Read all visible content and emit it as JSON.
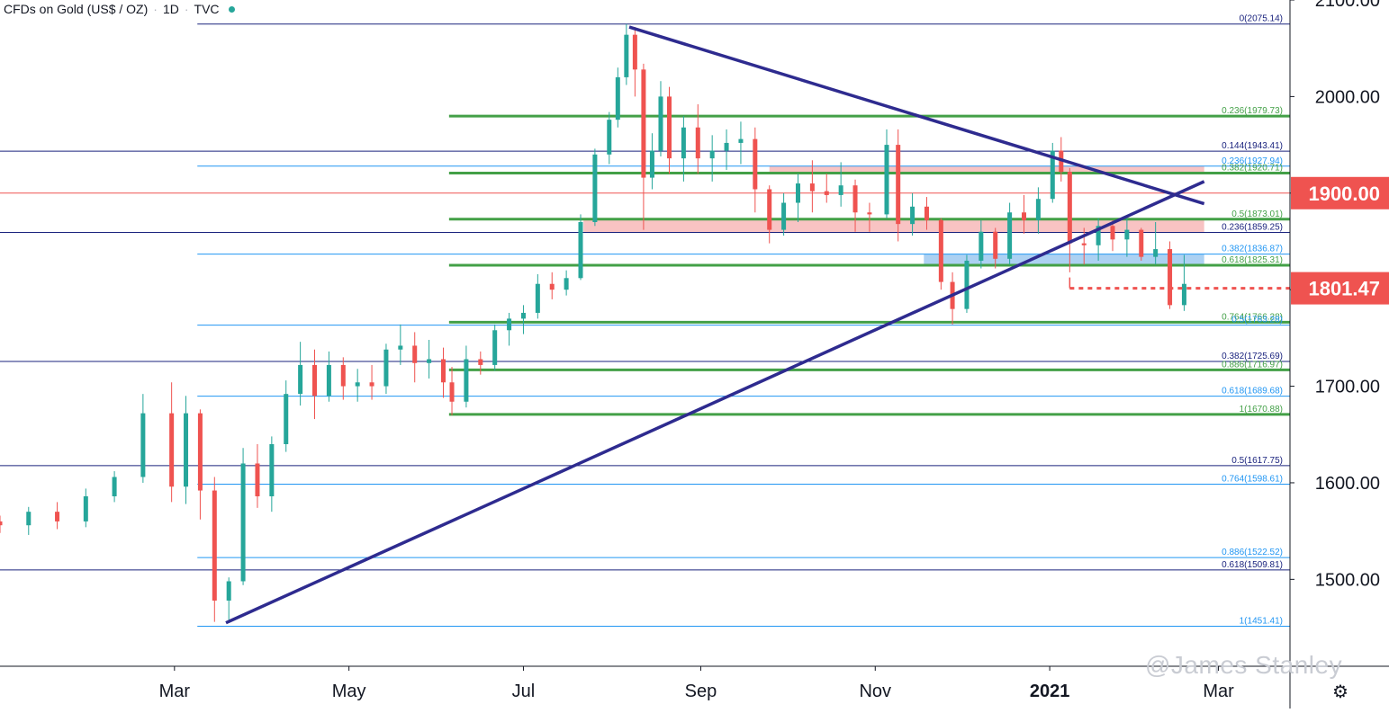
{
  "header": {
    "symbol": "CFDs on Gold (US$ / OZ)",
    "interval": "1D",
    "source": "TVC"
  },
  "colors": {
    "up": "#26a69a",
    "down": "#ef5350",
    "trendline": "#2e2b8f",
    "fib_green": "#43a047",
    "fib_blue": "#2196f3",
    "fib_navy": "#1a237e",
    "price_badge": "#ef5350",
    "zone_red": "#f7b8b8",
    "zone_blue": "#9ec9f0"
  },
  "watermark": "@James Stanley",
  "chart_data": {
    "type": "candlestick",
    "title": "",
    "xlabel": "",
    "ylabel": "",
    "ylim": [
      1410,
      2100
    ],
    "x_ticks": [
      {
        "label": "Mar",
        "date": "2020-03-01"
      },
      {
        "label": "May",
        "date": "2020-05-01"
      },
      {
        "label": "Jul",
        "date": "2020-07-01"
      },
      {
        "label": "Sep",
        "date": "2020-09-01"
      },
      {
        "label": "Nov",
        "date": "2020-11-01"
      },
      {
        "label": "2021",
        "date": "2021-01-01"
      },
      {
        "label": "Mar",
        "date": "2021-03-01"
      }
    ],
    "y_ticks": [
      "2100.00",
      "2000.00",
      "1900.00",
      "1800.00",
      "1700.00",
      "1600.00",
      "1500.00"
    ],
    "price_labels": [
      {
        "value": 1900.0,
        "label": "1900.00"
      },
      {
        "value": 1801.47,
        "label": "1801.47"
      }
    ],
    "reference_line": {
      "value": 1900.0
    },
    "fib_levels": [
      {
        "label": "0(2075.14)",
        "value": 2075.14,
        "color": "fib_navy",
        "start": "2020-03-09"
      },
      {
        "label": "0.236(1979.73)",
        "value": 1979.73,
        "color": "fib_green",
        "start": "2020-06-05"
      },
      {
        "label": "0.144(1943.41)",
        "value": 1943.41,
        "color": "fib_navy",
        "start": "2019-12-31"
      },
      {
        "label": "0.236(1927.94)",
        "value": 1927.94,
        "color": "fib_blue",
        "start": "2020-03-09"
      },
      {
        "label": "0.382(1920.71)",
        "value": 1920.71,
        "color": "fib_green",
        "start": "2020-06-05"
      },
      {
        "label": "0.5(1873.01)",
        "value": 1873.01,
        "color": "fib_green",
        "start": "2020-06-05"
      },
      {
        "label": "0.236(1859.25)",
        "value": 1859.25,
        "color": "fib_navy",
        "start": "2019-12-31"
      },
      {
        "label": "0.382(1836.87)",
        "value": 1836.87,
        "color": "fib_blue",
        "start": "2020-03-09"
      },
      {
        "label": "0.618(1825.31)",
        "value": 1825.31,
        "color": "fib_green",
        "start": "2020-06-05"
      },
      {
        "label": "0.764(1766.28)",
        "value": 1766.28,
        "color": "fib_green",
        "start": "2020-06-05"
      },
      {
        "label": "0.5(1763.28)",
        "value": 1763.28,
        "color": "fib_blue",
        "start": "2020-03-09"
      },
      {
        "label": "0.382(1725.69)",
        "value": 1725.69,
        "color": "fib_navy",
        "start": "2019-12-31"
      },
      {
        "label": "0.886(1716.97)",
        "value": 1716.97,
        "color": "fib_green",
        "start": "2020-06-05"
      },
      {
        "label": "0.618(1689.68)",
        "value": 1689.68,
        "color": "fib_blue",
        "start": "2020-03-09"
      },
      {
        "label": "1(1670.88)",
        "value": 1670.88,
        "color": "fib_green",
        "start": "2020-06-05"
      },
      {
        "label": "0.5(1617.75)",
        "value": 1617.75,
        "color": "fib_navy",
        "start": "2019-12-31"
      },
      {
        "label": "0.764(1598.61)",
        "value": 1598.61,
        "color": "fib_blue",
        "start": "2020-03-09"
      },
      {
        "label": "0.886(1522.52)",
        "value": 1522.52,
        "color": "fib_blue",
        "start": "2020-03-09"
      },
      {
        "label": "0.618(1509.81)",
        "value": 1509.81,
        "color": "fib_navy",
        "start": "2019-12-31"
      },
      {
        "label": "1(1451.41)",
        "value": 1451.41,
        "color": "fib_blue",
        "start": "2020-03-09"
      }
    ],
    "zones": [
      {
        "name": "resistance",
        "from_date": "2020-09-25",
        "to_date": "2021-02-24",
        "low": 1920.71,
        "high": 1927.94,
        "color": "zone_red"
      },
      {
        "name": "resistance",
        "from_date": "2020-07-22",
        "to_date": "2021-02-24",
        "low": 1859.25,
        "high": 1873.01,
        "color": "zone_red"
      },
      {
        "name": "support",
        "from_date": "2020-11-18",
        "to_date": "2021-02-24",
        "low": 1825.31,
        "high": 1836.87,
        "color": "zone_blue"
      }
    ],
    "trendlines": [
      {
        "from": {
          "date": "2020-03-19",
          "value": 1455
        },
        "to": {
          "date": "2021-02-24",
          "value": 1912
        }
      },
      {
        "from": {
          "date": "2020-08-07",
          "value": 2072
        },
        "to": {
          "date": "2021-02-24",
          "value": 1889
        }
      }
    ],
    "dashed_level": {
      "from_date": "2021-01-08",
      "to_date": "2021-02-24",
      "value": 1801.47
    },
    "candles": [
      {
        "d": "2019-12-31",
        "o": 1560,
        "h": 1566,
        "l": 1548,
        "c": 1556
      },
      {
        "d": "2020-01-10",
        "o": 1556,
        "h": 1575,
        "l": 1546,
        "c": 1570
      },
      {
        "d": "2020-01-20",
        "o": 1570,
        "h": 1580,
        "l": 1552,
        "c": 1560
      },
      {
        "d": "2020-01-30",
        "o": 1560,
        "h": 1594,
        "l": 1554,
        "c": 1586
      },
      {
        "d": "2020-02-09",
        "o": 1586,
        "h": 1612,
        "l": 1580,
        "c": 1606
      },
      {
        "d": "2020-02-19",
        "o": 1606,
        "h": 1692,
        "l": 1600,
        "c": 1672
      },
      {
        "d": "2020-02-29",
        "o": 1672,
        "h": 1704,
        "l": 1580,
        "c": 1596
      },
      {
        "d": "2020-03-05",
        "o": 1596,
        "h": 1690,
        "l": 1578,
        "c": 1672
      },
      {
        "d": "2020-03-10",
        "o": 1672,
        "h": 1676,
        "l": 1562,
        "c": 1592
      },
      {
        "d": "2020-03-15",
        "o": 1592,
        "h": 1606,
        "l": 1456,
        "c": 1478
      },
      {
        "d": "2020-03-20",
        "o": 1478,
        "h": 1502,
        "l": 1458,
        "c": 1498
      },
      {
        "d": "2020-03-25",
        "o": 1498,
        "h": 1636,
        "l": 1494,
        "c": 1620
      },
      {
        "d": "2020-03-30",
        "o": 1620,
        "h": 1640,
        "l": 1574,
        "c": 1586
      },
      {
        "d": "2020-04-04",
        "o": 1586,
        "h": 1648,
        "l": 1570,
        "c": 1640
      },
      {
        "d": "2020-04-09",
        "o": 1640,
        "h": 1706,
        "l": 1632,
        "c": 1692
      },
      {
        "d": "2020-04-14",
        "o": 1692,
        "h": 1746,
        "l": 1680,
        "c": 1722
      },
      {
        "d": "2020-04-19",
        "o": 1722,
        "h": 1738,
        "l": 1666,
        "c": 1690
      },
      {
        "d": "2020-04-24",
        "o": 1690,
        "h": 1736,
        "l": 1684,
        "c": 1722
      },
      {
        "d": "2020-04-29",
        "o": 1722,
        "h": 1730,
        "l": 1686,
        "c": 1700
      },
      {
        "d": "2020-05-04",
        "o": 1700,
        "h": 1718,
        "l": 1684,
        "c": 1704
      },
      {
        "d": "2020-05-09",
        "o": 1704,
        "h": 1722,
        "l": 1686,
        "c": 1700
      },
      {
        "d": "2020-05-14",
        "o": 1700,
        "h": 1744,
        "l": 1692,
        "c": 1738
      },
      {
        "d": "2020-05-19",
        "o": 1738,
        "h": 1764,
        "l": 1722,
        "c": 1742
      },
      {
        "d": "2020-05-24",
        "o": 1742,
        "h": 1756,
        "l": 1704,
        "c": 1724
      },
      {
        "d": "2020-05-29",
        "o": 1724,
        "h": 1748,
        "l": 1708,
        "c": 1728
      },
      {
        "d": "2020-06-03",
        "o": 1728,
        "h": 1740,
        "l": 1688,
        "c": 1704
      },
      {
        "d": "2020-06-06",
        "o": 1704,
        "h": 1720,
        "l": 1670,
        "c": 1684
      },
      {
        "d": "2020-06-11",
        "o": 1684,
        "h": 1742,
        "l": 1678,
        "c": 1728
      },
      {
        "d": "2020-06-16",
        "o": 1728,
        "h": 1736,
        "l": 1712,
        "c": 1722
      },
      {
        "d": "2020-06-21",
        "o": 1722,
        "h": 1764,
        "l": 1716,
        "c": 1758
      },
      {
        "d": "2020-06-26",
        "o": 1758,
        "h": 1776,
        "l": 1742,
        "c": 1770
      },
      {
        "d": "2020-07-01",
        "o": 1770,
        "h": 1784,
        "l": 1754,
        "c": 1776
      },
      {
        "d": "2020-07-06",
        "o": 1776,
        "h": 1816,
        "l": 1770,
        "c": 1806
      },
      {
        "d": "2020-07-11",
        "o": 1806,
        "h": 1818,
        "l": 1790,
        "c": 1800
      },
      {
        "d": "2020-07-16",
        "o": 1800,
        "h": 1820,
        "l": 1794,
        "c": 1812
      },
      {
        "d": "2020-07-21",
        "o": 1812,
        "h": 1878,
        "l": 1810,
        "c": 1870
      },
      {
        "d": "2020-07-26",
        "o": 1870,
        "h": 1946,
        "l": 1866,
        "c": 1940
      },
      {
        "d": "2020-07-31",
        "o": 1940,
        "h": 1984,
        "l": 1930,
        "c": 1976
      },
      {
        "d": "2020-08-03",
        "o": 1976,
        "h": 2030,
        "l": 1968,
        "c": 2020
      },
      {
        "d": "2020-08-06",
        "o": 2020,
        "h": 2075,
        "l": 2012,
        "c": 2064
      },
      {
        "d": "2020-08-09",
        "o": 2064,
        "h": 2072,
        "l": 2000,
        "c": 2028
      },
      {
        "d": "2020-08-12",
        "o": 2028,
        "h": 2034,
        "l": 1862,
        "c": 1916
      },
      {
        "d": "2020-08-15",
        "o": 1916,
        "h": 1962,
        "l": 1904,
        "c": 1944
      },
      {
        "d": "2020-08-18",
        "o": 1944,
        "h": 2016,
        "l": 1938,
        "c": 2000
      },
      {
        "d": "2020-08-21",
        "o": 2000,
        "h": 2010,
        "l": 1920,
        "c": 1936
      },
      {
        "d": "2020-08-26",
        "o": 1936,
        "h": 1980,
        "l": 1912,
        "c": 1968
      },
      {
        "d": "2020-08-31",
        "o": 1968,
        "h": 1992,
        "l": 1920,
        "c": 1936
      },
      {
        "d": "2020-09-05",
        "o": 1936,
        "h": 1960,
        "l": 1912,
        "c": 1944
      },
      {
        "d": "2020-09-10",
        "o": 1944,
        "h": 1966,
        "l": 1924,
        "c": 1952
      },
      {
        "d": "2020-09-15",
        "o": 1952,
        "h": 1974,
        "l": 1930,
        "c": 1956
      },
      {
        "d": "2020-09-20",
        "o": 1956,
        "h": 1968,
        "l": 1880,
        "c": 1904
      },
      {
        "d": "2020-09-25",
        "o": 1904,
        "h": 1908,
        "l": 1848,
        "c": 1862
      },
      {
        "d": "2020-09-30",
        "o": 1862,
        "h": 1900,
        "l": 1856,
        "c": 1890
      },
      {
        "d": "2020-10-05",
        "o": 1890,
        "h": 1920,
        "l": 1870,
        "c": 1910
      },
      {
        "d": "2020-10-10",
        "o": 1910,
        "h": 1934,
        "l": 1880,
        "c": 1902
      },
      {
        "d": "2020-10-15",
        "o": 1902,
        "h": 1920,
        "l": 1890,
        "c": 1898
      },
      {
        "d": "2020-10-20",
        "o": 1898,
        "h": 1932,
        "l": 1886,
        "c": 1908
      },
      {
        "d": "2020-10-25",
        "o": 1908,
        "h": 1914,
        "l": 1860,
        "c": 1880
      },
      {
        "d": "2020-10-30",
        "o": 1880,
        "h": 1890,
        "l": 1860,
        "c": 1878
      },
      {
        "d": "2020-11-05",
        "o": 1878,
        "h": 1966,
        "l": 1874,
        "c": 1950
      },
      {
        "d": "2020-11-09",
        "o": 1950,
        "h": 1966,
        "l": 1850,
        "c": 1868
      },
      {
        "d": "2020-11-14",
        "o": 1868,
        "h": 1900,
        "l": 1856,
        "c": 1886
      },
      {
        "d": "2020-11-19",
        "o": 1886,
        "h": 1896,
        "l": 1862,
        "c": 1872
      },
      {
        "d": "2020-11-24",
        "o": 1872,
        "h": 1874,
        "l": 1800,
        "c": 1808
      },
      {
        "d": "2020-11-28",
        "o": 1808,
        "h": 1818,
        "l": 1764,
        "c": 1780
      },
      {
        "d": "2020-12-03",
        "o": 1780,
        "h": 1836,
        "l": 1776,
        "c": 1830
      },
      {
        "d": "2020-12-08",
        "o": 1830,
        "h": 1872,
        "l": 1822,
        "c": 1860
      },
      {
        "d": "2020-12-13",
        "o": 1860,
        "h": 1864,
        "l": 1822,
        "c": 1832
      },
      {
        "d": "2020-12-18",
        "o": 1832,
        "h": 1890,
        "l": 1826,
        "c": 1880
      },
      {
        "d": "2020-12-23",
        "o": 1880,
        "h": 1898,
        "l": 1858,
        "c": 1872
      },
      {
        "d": "2020-12-28",
        "o": 1872,
        "h": 1906,
        "l": 1858,
        "c": 1894
      },
      {
        "d": "2021-01-02",
        "o": 1894,
        "h": 1952,
        "l": 1890,
        "c": 1944
      },
      {
        "d": "2021-01-05",
        "o": 1944,
        "h": 1958,
        "l": 1912,
        "c": 1922
      },
      {
        "d": "2021-01-08",
        "o": 1922,
        "h": 1926,
        "l": 1818,
        "c": 1848
      },
      {
        "d": "2021-01-13",
        "o": 1848,
        "h": 1864,
        "l": 1826,
        "c": 1846
      },
      {
        "d": "2021-01-18",
        "o": 1846,
        "h": 1874,
        "l": 1830,
        "c": 1866
      },
      {
        "d": "2021-01-23",
        "o": 1866,
        "h": 1872,
        "l": 1840,
        "c": 1852
      },
      {
        "d": "2021-01-28",
        "o": 1852,
        "h": 1874,
        "l": 1834,
        "c": 1862
      },
      {
        "d": "2021-02-02",
        "o": 1862,
        "h": 1864,
        "l": 1830,
        "c": 1834
      },
      {
        "d": "2021-02-07",
        "o": 1834,
        "h": 1870,
        "l": 1826,
        "c": 1842
      },
      {
        "d": "2021-02-12",
        "o": 1842,
        "h": 1850,
        "l": 1780,
        "c": 1784
      },
      {
        "d": "2021-02-17",
        "o": 1784,
        "h": 1836,
        "l": 1778,
        "c": 1806
      }
    ]
  }
}
